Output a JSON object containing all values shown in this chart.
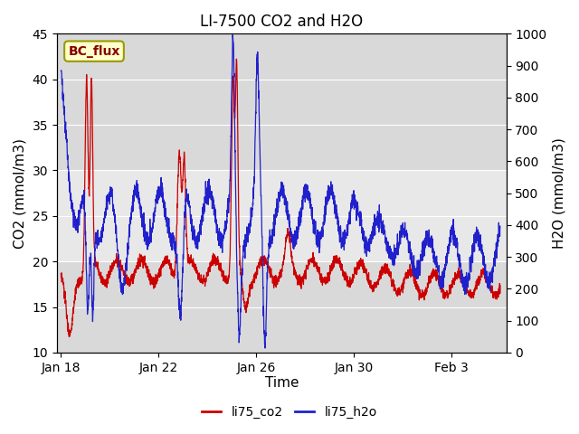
{
  "title": "LI-7500 CO2 and H2O",
  "ylabel_left": "CO2 (mmol/m3)",
  "ylabel_right": "H2O (mmol/m3)",
  "xlabel": "Time",
  "ylim_left": [
    10,
    45
  ],
  "ylim_right": [
    0,
    1000
  ],
  "yticks_left": [
    10,
    15,
    20,
    25,
    30,
    35,
    40,
    45
  ],
  "yticks_right": [
    0,
    100,
    200,
    300,
    400,
    500,
    600,
    700,
    800,
    900,
    1000
  ],
  "xtick_positions_days": [
    0,
    4,
    8,
    12,
    16
  ],
  "xtick_labels": [
    "Jan 18",
    "Jan 22",
    "Jan 26",
    "Jan 30",
    "Feb 3"
  ],
  "shade_ymin_co2": 30,
  "shade_ymax_co2": 45,
  "shade2_ymin_co2": 10,
  "shade2_ymax_co2": 20,
  "legend_labels": [
    "li75_co2",
    "li75_h2o"
  ],
  "line_colors": [
    "#cc0000",
    "#2020cc"
  ],
  "bc_flux_label": "BC_flux",
  "background_color": "#ffffff",
  "plot_bg_color": "#e8e8e8",
  "shade_color": "#d8d8d8",
  "title_fontsize": 12,
  "axis_fontsize": 11,
  "tick_fontsize": 10,
  "legend_fontsize": 10
}
